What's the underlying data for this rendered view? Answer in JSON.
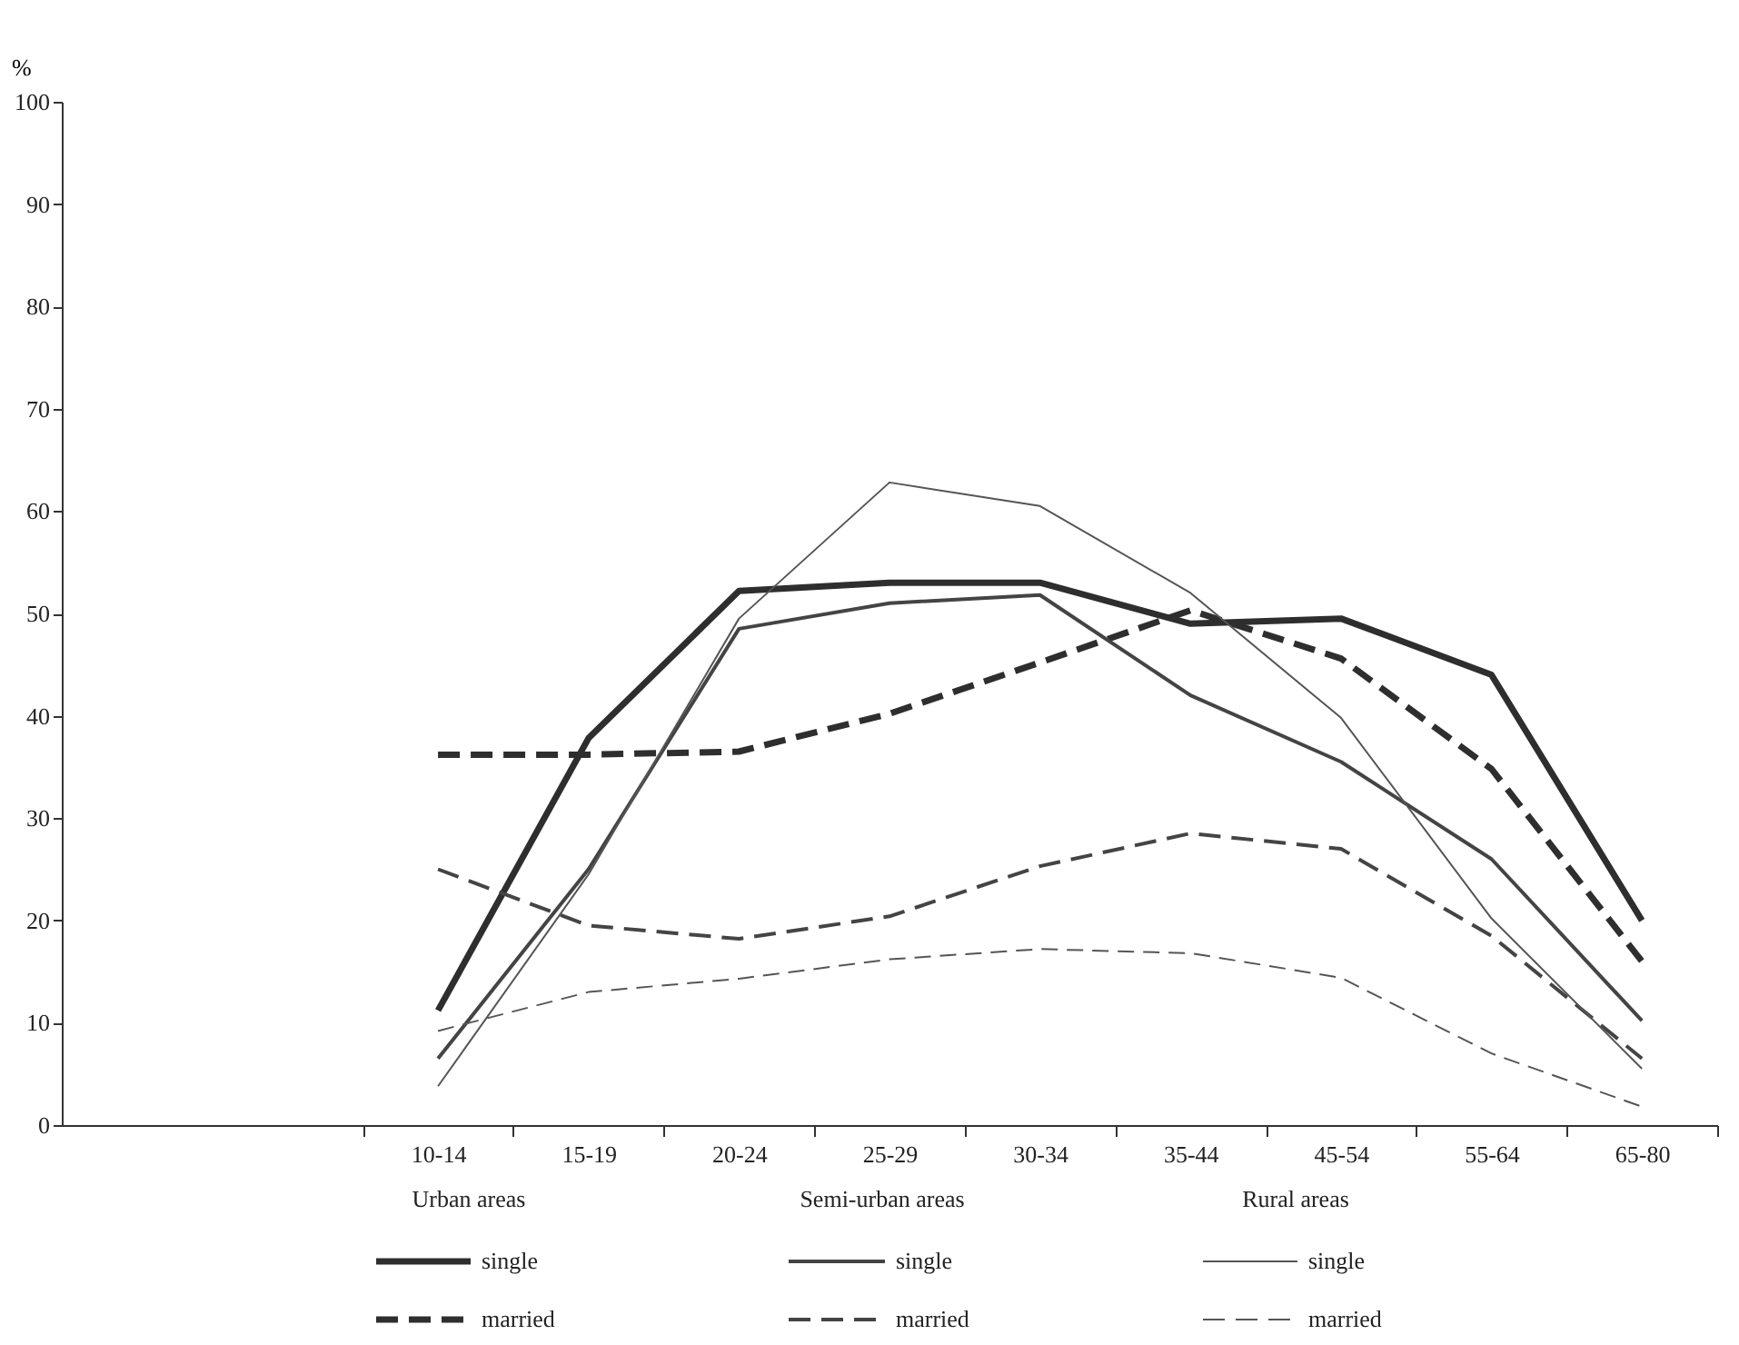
{
  "chart_data": {
    "type": "line",
    "ylabel": "%",
    "categories": [
      "10-14",
      "15-19",
      "20-24",
      "25-29",
      "30-34",
      "35-44",
      "45-54",
      "55-64",
      "65-80"
    ],
    "ylim": [
      0,
      100
    ],
    "yticks": [
      0,
      10,
      20,
      30,
      40,
      50,
      60,
      70,
      80,
      90,
      100
    ],
    "grid": false,
    "legend": "bottom",
    "marker": "none",
    "annotations": [
      "Urban areas",
      "Semi-urban areas",
      "Rural areas"
    ],
    "series": [
      {
        "name": "single",
        "color": "#2e2e2e",
        "line_style": "solid",
        "values": [
          11.2,
          37.8,
          52.2,
          53,
          53,
          49,
          49.5,
          44,
          20
        ]
      },
      {
        "name": "married",
        "color": "#2e2e2e",
        "line_style": "dashed",
        "values": [
          36.2,
          36.2,
          36.5,
          40.2,
          45.2,
          50.3,
          45.6,
          34.8,
          16
        ]
      },
      {
        "name": "single",
        "color": "#444444",
        "line_style": "solid",
        "values": [
          6.5,
          25,
          48.5,
          51,
          51.8,
          42,
          35.5,
          26,
          10.2
        ]
      },
      {
        "name": "married",
        "color": "#444444",
        "line_style": "dashed",
        "values": [
          25,
          19.5,
          18.2,
          20.4,
          25.3,
          28.5,
          27,
          18.5,
          6.5
        ]
      },
      {
        "name": "single",
        "color": "#555555",
        "line_style": "solid",
        "values": [
          3.8,
          24.5,
          49.5,
          62.8,
          60.5,
          52,
          39.8,
          20.2,
          5.5
        ]
      },
      {
        "name": "married",
        "color": "#555555",
        "line_style": "dashed",
        "values": [
          9.2,
          13,
          14.3,
          16.2,
          17.2,
          16.8,
          14.4,
          7,
          1.8
        ]
      }
    ]
  }
}
